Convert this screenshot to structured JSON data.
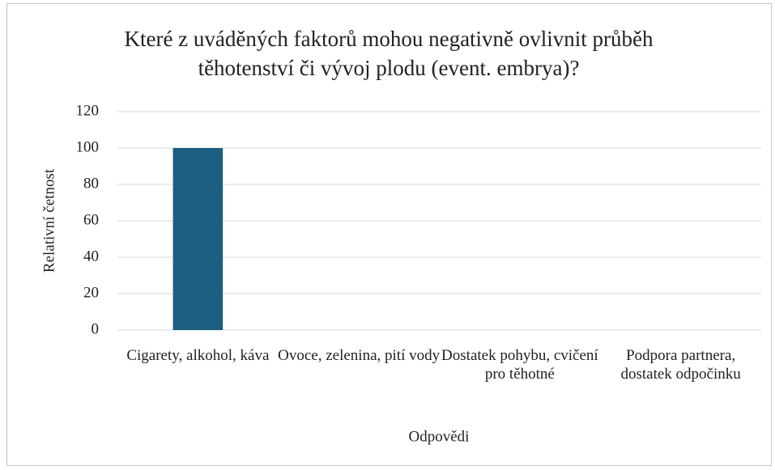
{
  "chart_data": {
    "type": "bar",
    "title": "Které z uváděných faktorů mohou negativně ovlivnit průběh těhotenství či vývoj plodu (event. embrya)?",
    "x_label": "Odpovědi",
    "y_label": "Relativní četnost",
    "categories": [
      "Cigarety, alkohol, káva",
      "Ovoce, zelenina, pití vody",
      "Dostatek pohybu, cvičení pro těhotné",
      "Podpora partnera, dostatek odpočinku"
    ],
    "values": [
      100,
      0,
      0,
      0
    ],
    "color": "#1b5e80",
    "ylim": [
      0,
      120
    ],
    "yticks": [
      0,
      20,
      40,
      60,
      80,
      100,
      120
    ],
    "grid": true
  }
}
